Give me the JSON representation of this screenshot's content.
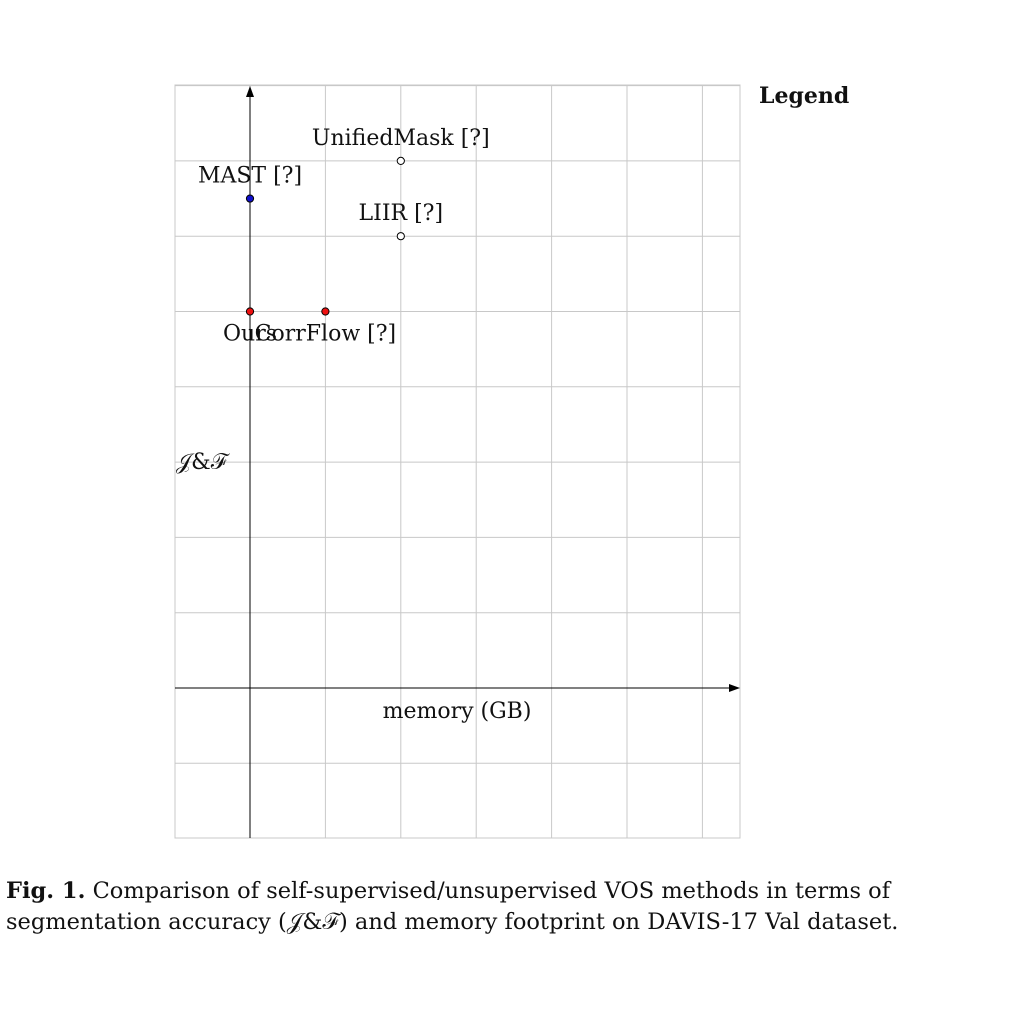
{
  "chart_data": {
    "type": "scatter",
    "xlabel": "memory (GB)",
    "ylabel": "𝒥&ℱ",
    "legend_title": "Legend",
    "xlim": [
      -1,
      6.5
    ],
    "ylim": [
      -2,
      8
    ],
    "grid": true,
    "points": [
      {
        "name": "UnifiedMask [?]",
        "x": 2,
        "y": 7.0,
        "color": "#ffffff",
        "label_pos": "above"
      },
      {
        "name": "MAST [?]",
        "x": 0,
        "y": 6.5,
        "color": "#1010cc",
        "label_pos": "above"
      },
      {
        "name": "LIIR [?]",
        "x": 2,
        "y": 6.0,
        "color": "#ffffff",
        "label_pos": "above"
      },
      {
        "name": "Ours",
        "x": 0,
        "y": 5.0,
        "color": "#ee1111",
        "label_pos": "below"
      },
      {
        "name": "CorrFlow [?]",
        "x": 1,
        "y": 5.0,
        "color": "#ee1111",
        "label_pos": "below"
      }
    ]
  },
  "caption": {
    "label": "Fig. 1.",
    "text": "Comparison of self-supervised/unsupervised VOS methods in terms of segmentation accuracy (𝒥&ℱ) and memory footprint on DAVIS-17 Val dataset."
  }
}
